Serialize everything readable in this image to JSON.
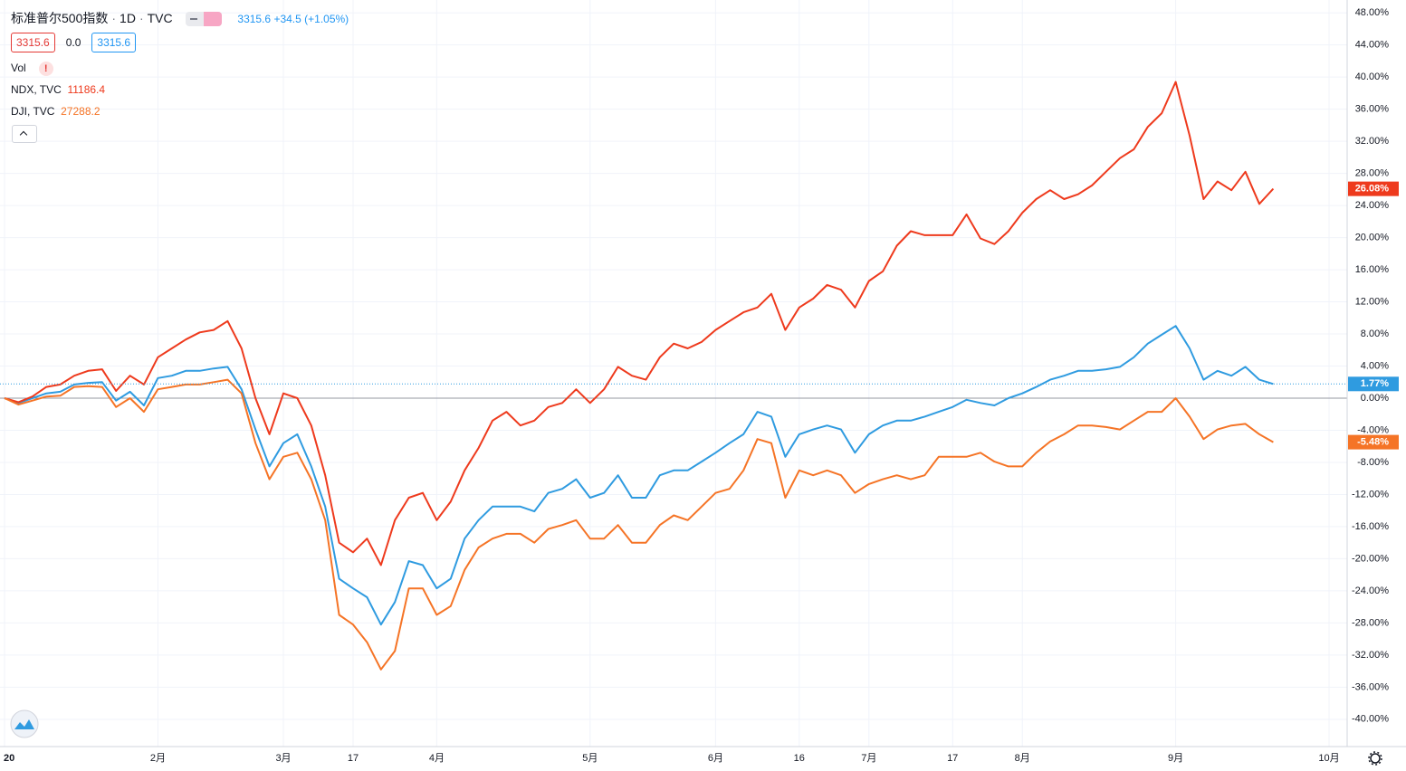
{
  "chart_data": {
    "type": "line",
    "interval": "1D",
    "source": "TVC",
    "change": "+34.5",
    "change_pct": "(+1.05%)",
    "buttons": [
      "3315.6",
      "0.0",
      "3315.6"
    ],
    "volume_label": "Vol",
    "categories": [
      "20",
      null,
      null,
      null,
      null,
      null,
      null,
      null,
      null,
      null,
      null,
      "2月",
      null,
      null,
      null,
      null,
      null,
      null,
      null,
      null,
      "3月",
      null,
      null,
      null,
      null,
      "17",
      null,
      null,
      null,
      null,
      null,
      "4月",
      null,
      null,
      null,
      null,
      null,
      null,
      null,
      null,
      null,
      null,
      "5月",
      null,
      null,
      null,
      null,
      null,
      null,
      null,
      null,
      "6月",
      null,
      null,
      null,
      null,
      null,
      "16",
      null,
      null,
      null,
      null,
      "7月",
      null,
      null,
      null,
      null,
      null,
      "17",
      null,
      null,
      null,
      null,
      "8月",
      null,
      null,
      null,
      null,
      null,
      null,
      null,
      null,
      null,
      null,
      "9月",
      null,
      null,
      null,
      null,
      null,
      null,
      null,
      null,
      null,
      null,
      "10月"
    ],
    "series": [
      {
        "name": "标准普尔500指数",
        "color": "#2f9be0",
        "last_price": "3315.6",
        "last_label": "1.77%",
        "values": [
          0,
          -0.6,
          0,
          0.6,
          0.8,
          1.7,
          1.9,
          2.0,
          -0.3,
          0.8,
          -0.9,
          2.5,
          2.8,
          3.4,
          3.4,
          3.7,
          3.9,
          1.1,
          -3.9,
          -8.5,
          -5.6,
          -4.5,
          -8.5,
          -13.5,
          -22.5,
          -23.7,
          -24.8,
          -28.2,
          -25.4,
          -20.3,
          -20.8,
          -23.7,
          -22.5,
          -17.5,
          -15.2,
          -13.5,
          -13.5,
          -13.5,
          -14.1,
          -11.8,
          -11.3,
          -10.1,
          -12.4,
          -11.8,
          -9.6,
          -12.4,
          -12.4,
          -9.6,
          -9,
          -9,
          -7.9,
          -6.8,
          -5.6,
          -4.5,
          -1.7,
          -2.3,
          -7.3,
          -4.5,
          -3.9,
          -3.4,
          -3.9,
          -6.8,
          -4.5,
          -3.4,
          -2.8,
          -2.8,
          -2.3,
          -1.7,
          -1.1,
          -0.2,
          -0.6,
          -0.9,
          0,
          0.6,
          1.4,
          2.3,
          2.8,
          3.4,
          3.4,
          3.6,
          3.9,
          5.1,
          6.8,
          7.9,
          9,
          6.2,
          2.3,
          3.4,
          2.8,
          3.9,
          2.3,
          1.77,
          null,
          null,
          null,
          null
        ]
      },
      {
        "name": "NDX, TVC",
        "color": "#ee3a1d",
        "last_price": "11186.4",
        "last_label": "26.08%",
        "values": [
          0,
          -0.5,
          0.2,
          1.4,
          1.7,
          2.8,
          3.4,
          3.6,
          0.9,
          2.8,
          1.7,
          5.1,
          6.2,
          7.3,
          8.2,
          8.5,
          9.6,
          6.2,
          0,
          -4.5,
          0.6,
          0,
          -3.4,
          -9.6,
          -18,
          -19.2,
          -17.5,
          -20.8,
          -15.2,
          -12.4,
          -11.8,
          -15.2,
          -12.9,
          -9,
          -6.2,
          -2.8,
          -1.7,
          -3.4,
          -2.8,
          -1.1,
          -0.6,
          1.1,
          -0.6,
          1.1,
          3.9,
          2.8,
          2.3,
          5.1,
          6.8,
          6.2,
          7,
          8.5,
          9.6,
          10.7,
          11.3,
          13,
          8.5,
          11.3,
          12.4,
          14.1,
          13.5,
          11.3,
          14.6,
          15.8,
          19,
          20.8,
          20.3,
          20.3,
          20.3,
          22.9,
          19.9,
          19.2,
          20.8,
          23.1,
          24.8,
          25.9,
          24.8,
          25.4,
          26.5,
          28.2,
          29.9,
          31,
          33.8,
          35.5,
          39.4,
          32.7,
          24.8,
          27,
          25.9,
          28.2,
          24.2,
          26.08,
          null,
          null,
          null,
          null
        ]
      },
      {
        "name": "DJI, TVC",
        "color": "#f57426",
        "last_price": "27288.2",
        "last_label": "-5.48%",
        "values": [
          0,
          -0.8,
          -0.3,
          0.2,
          0.3,
          1.4,
          1.5,
          1.4,
          -1.1,
          0,
          -1.7,
          1.1,
          1.4,
          1.7,
          1.7,
          2.0,
          2.3,
          0.6,
          -5.6,
          -10.1,
          -7.3,
          -6.8,
          -10.1,
          -15.2,
          -27,
          -28.2,
          -30.4,
          -33.8,
          -31.5,
          -23.7,
          -23.7,
          -27,
          -25.9,
          -21.4,
          -18.6,
          -17.5,
          -16.9,
          -16.9,
          -18,
          -16.3,
          -15.8,
          -15.2,
          -17.5,
          -17.5,
          -15.8,
          -18,
          -18,
          -15.8,
          -14.6,
          -15.2,
          -13.5,
          -11.8,
          -11.3,
          -9,
          -5.1,
          -5.6,
          -12.4,
          -9,
          -9.6,
          -9,
          -9.6,
          -11.8,
          -10.7,
          -10.1,
          -9.6,
          -10.1,
          -9.6,
          -7.3,
          -7.3,
          -7.3,
          -6.8,
          -7.9,
          -8.5,
          -8.5,
          -6.8,
          -5.4,
          -4.5,
          -3.4,
          -3.4,
          -3.6,
          -3.9,
          -2.8,
          -1.7,
          -1.7,
          0,
          -2.3,
          -5.1,
          -3.9,
          -3.4,
          -3.2,
          -4.5,
          -5.48,
          null,
          null,
          null,
          null
        ]
      }
    ],
    "ylim": [
      -43.4,
      49.6
    ],
    "yticks": [
      {
        "value": -40,
        "label": "-40.00%"
      },
      {
        "value": -36,
        "label": "-36.00%"
      },
      {
        "value": -32,
        "label": "-32.00%"
      },
      {
        "value": -28,
        "label": "-28.00%"
      },
      {
        "value": -24,
        "label": "-24.00%"
      },
      {
        "value": -20,
        "label": "-20.00%"
      },
      {
        "value": -16,
        "label": "-16.00%"
      },
      {
        "value": -12,
        "label": "-12.00%"
      },
      {
        "value": -8,
        "label": "-8.00%"
      },
      {
        "value": -4,
        "label": "-4.00%"
      },
      {
        "value": 0,
        "label": "0.00%"
      },
      {
        "value": 4,
        "label": "4.00%"
      },
      {
        "value": 8,
        "label": "8.00%"
      },
      {
        "value": 12,
        "label": "12.00%"
      },
      {
        "value": 16,
        "label": "16.00%"
      },
      {
        "value": 20,
        "label": "20.00%"
      },
      {
        "value": 24,
        "label": "24.00%"
      },
      {
        "value": 28,
        "label": "28.00%"
      },
      {
        "value": 32,
        "label": "32.00%"
      },
      {
        "value": 36,
        "label": "36.00%"
      },
      {
        "value": 40,
        "label": "40.00%"
      },
      {
        "value": 44,
        "label": "44.00%"
      },
      {
        "value": 48,
        "label": "48.00%"
      }
    ],
    "grid": true
  }
}
